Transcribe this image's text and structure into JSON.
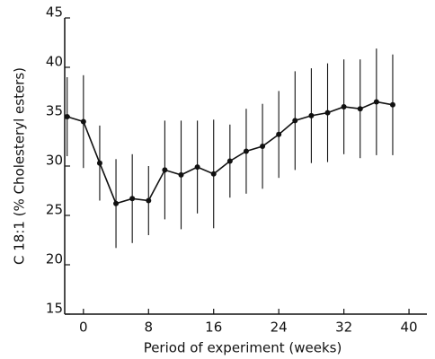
{
  "chart_data": {
    "type": "line",
    "xlabel": "Period of experiment (weeks)",
    "ylabel": "C 18:1 (% Cholesteryl esters)",
    "x": [
      -2,
      0,
      2,
      4,
      6,
      8,
      10,
      12,
      14,
      16,
      18,
      20,
      22,
      24,
      26,
      28,
      30,
      32,
      34,
      36,
      38
    ],
    "series": [
      {
        "color": "#111111",
        "values": [
          35.0,
          34.5,
          30.3,
          26.2,
          26.7,
          26.5,
          29.6,
          29.1,
          29.9,
          29.2,
          30.5,
          31.5,
          32.0,
          33.2,
          34.6,
          35.1,
          35.4,
          36.0,
          35.8,
          36.5,
          36.2
        ],
        "errors": [
          4.0,
          4.7,
          3.8,
          4.5,
          4.5,
          3.5,
          5.0,
          5.5,
          4.7,
          5.5,
          3.7,
          4.3,
          4.3,
          4.4,
          5.0,
          4.8,
          5.0,
          4.8,
          5.0,
          5.4,
          5.1
        ]
      }
    ],
    "xlim": [
      -2.3,
      42.2
    ],
    "xticks": [
      0,
      8,
      16,
      24,
      32,
      40
    ],
    "ylim": [
      15,
      45
    ],
    "yticks": [
      15,
      20,
      25,
      30,
      35,
      40,
      45
    ]
  }
}
